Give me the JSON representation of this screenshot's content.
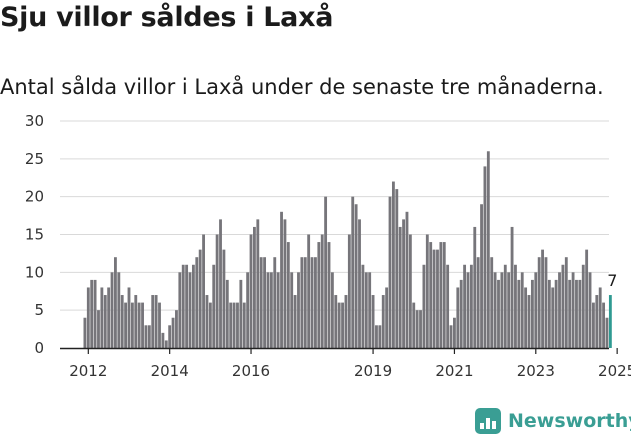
{
  "header": {
    "title": "Sju villor såldes i Laxå",
    "subtitle": "Antal sålda villor i Laxå under de senaste tre månaderna."
  },
  "brand": {
    "name": "Newsworthy",
    "icon": "newsworthy-logo-icon",
    "color": "#3a9e94"
  },
  "chart_data": {
    "type": "bar",
    "title": "",
    "xlabel": "",
    "ylabel": "",
    "ylim": [
      0,
      30
    ],
    "yticks": [
      "0",
      "5",
      "10",
      "15",
      "20",
      "25",
      "30"
    ],
    "xticks": [
      {
        "label": "2012",
        "at": "2012-01"
      },
      {
        "label": "2014",
        "at": "2014-01"
      },
      {
        "label": "2016",
        "at": "2016-01"
      },
      {
        "label": "2019",
        "at": "2019-01"
      },
      {
        "label": "2021",
        "at": "2021-01"
      },
      {
        "label": "2023",
        "at": "2023-01"
      },
      {
        "label": "2025",
        "at": "2025-01"
      }
    ],
    "grid": true,
    "legend": "none",
    "bar_color": "#76757a",
    "highlight_color": "#2f9a92",
    "annotation": "7",
    "series": [
      {
        "start": "2011-12",
        "values": [
          4,
          8,
          9,
          9,
          5,
          8,
          7,
          8,
          10,
          12,
          10,
          7,
          6,
          8,
          6,
          7,
          6,
          6,
          3,
          3,
          7,
          7,
          6,
          2,
          1,
          3,
          4,
          5,
          10,
          11,
          11,
          10,
          11,
          12,
          13,
          15,
          7,
          6,
          11,
          15,
          17,
          13,
          9,
          6,
          6,
          6,
          9,
          6,
          10,
          15,
          16,
          17,
          12,
          12,
          10,
          10,
          12,
          10,
          18,
          17,
          14,
          10,
          7,
          10,
          12,
          12,
          15,
          12,
          12,
          14,
          15,
          20,
          14,
          10,
          7,
          6,
          6,
          7,
          15,
          20,
          19,
          17,
          11,
          10,
          10,
          7,
          3,
          3,
          7,
          8,
          20,
          22,
          21,
          16,
          17,
          18,
          15,
          6,
          5,
          5,
          11,
          15,
          14,
          13,
          13,
          14,
          14,
          11,
          3,
          4,
          8,
          9,
          11,
          10,
          11,
          16,
          12,
          19,
          24,
          26,
          12,
          10,
          9,
          10,
          11,
          10,
          16,
          11,
          9,
          10,
          8,
          7,
          9,
          10,
          12,
          13,
          12,
          9,
          8,
          9,
          10,
          11,
          12,
          9,
          10,
          9,
          9,
          11,
          13,
          10,
          6,
          7,
          8,
          6,
          4,
          7
        ]
      }
    ]
  }
}
